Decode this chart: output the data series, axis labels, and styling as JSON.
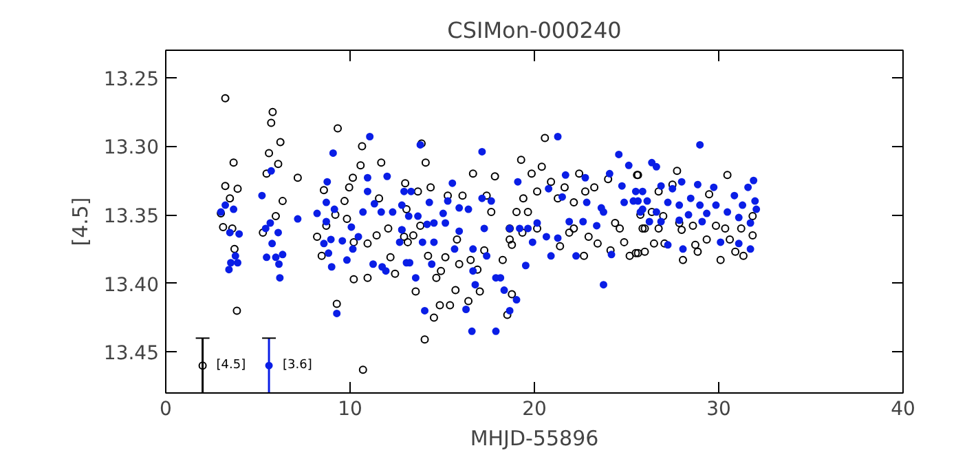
{
  "chart_data": {
    "type": "scatter",
    "title": "CSIMon-000240",
    "xlabel": "MHJD-55896",
    "ylabel": "[4.5]",
    "xlim": [
      0,
      40
    ],
    "xticks": [
      0,
      10,
      20,
      30,
      40
    ],
    "ylim": [
      13.48,
      13.23
    ],
    "yticks": [
      13.25,
      {
        "value": 13.3,
        "label": "13.30"
      },
      13.35,
      {
        "value": 13.4,
        "label": "13.40"
      },
      13.45
    ],
    "grid": false,
    "marker": "circle",
    "series": [
      {
        "color": "#000000",
        "x": [
          3.23,
          3.68,
          3.23,
          3.9,
          3.48,
          2.99,
          3.11,
          3.61,
          3.73,
          3.86,
          5.8,
          5.72,
          6.22,
          5.6,
          6.1,
          5.47,
          7.16,
          6.34,
          5.97,
          5.27,
          9.33,
          10.65,
          10.57,
          11.69,
          10.15,
          8.58,
          9.95,
          9.7,
          9.2,
          8.71,
          8.21,
          9.83,
          10.2,
          10.95,
          11.44,
          12.07,
          12.93,
          8.46,
          10.2,
          10.95,
          12.19,
          12.44,
          9.28,
          10.7,
          13.06,
          11.57,
          13.88,
          14.1,
          12.99,
          13.68,
          14.37,
          13.81,
          13.43,
          13.13,
          14.23,
          14.93,
          14.68,
          13.56,
          14.55,
          14.05,
          15.3,
          16.1,
          16.67,
          17.86,
          17.41,
          17.66,
          15.8,
          15.17,
          15.92,
          16.54,
          17.28,
          16.91,
          15.72,
          17.04,
          16.42,
          15.42,
          14.87,
          18.53,
          18.78,
          18.28,
          18.78,
          19.28,
          19.85,
          20.4,
          20.57,
          19.4,
          20.15,
          19.03,
          19.65,
          20.9,
          21.64,
          21.27,
          22.14,
          22.76,
          22.43,
          23.25,
          24.0,
          18.66,
          19.35,
          20.15,
          18.66,
          21.39,
          21.89,
          22.14,
          22.94,
          22.69,
          23.43,
          24.38,
          24.63,
          24.87,
          24.13,
          25.17,
          25.62,
          25.87,
          25.57,
          27.74,
          25.62,
          27.49,
          26.74,
          30.47,
          29.48,
          25.75,
          26.37,
          26.99,
          27.86,
          28.6,
          29.85,
          30.35,
          31.22,
          31.84,
          25.99,
          26.74,
          27.99,
          29.35,
          30.6,
          31.84,
          25.5,
          25.99,
          26.49,
          27.06,
          28.73,
          30.9,
          31.34,
          28.06,
          28.86,
          30.1
        ],
        "values": [
          13.265,
          13.312,
          13.329,
          13.331,
          13.338,
          13.349,
          13.359,
          13.36,
          13.375,
          13.42,
          13.275,
          13.283,
          13.297,
          13.305,
          13.313,
          13.32,
          13.323,
          13.34,
          13.351,
          13.363,
          13.287,
          13.3,
          13.314,
          13.312,
          13.323,
          13.332,
          13.33,
          13.34,
          13.35,
          13.358,
          13.366,
          13.353,
          13.37,
          13.371,
          13.365,
          13.36,
          13.366,
          13.38,
          13.397,
          13.396,
          13.381,
          13.393,
          13.415,
          13.463,
          13.346,
          13.338,
          13.298,
          13.312,
          13.327,
          13.333,
          13.33,
          13.358,
          13.365,
          13.37,
          13.38,
          13.391,
          13.396,
          13.406,
          13.425,
          13.441,
          13.336,
          13.336,
          13.32,
          13.322,
          13.336,
          13.348,
          13.368,
          13.381,
          13.386,
          13.383,
          13.376,
          13.39,
          13.405,
          13.406,
          13.413,
          13.416,
          13.416,
          13.423,
          13.408,
          13.383,
          13.372,
          13.31,
          13.32,
          13.315,
          13.294,
          13.338,
          13.333,
          13.348,
          13.348,
          13.326,
          13.33,
          13.338,
          13.341,
          13.333,
          13.32,
          13.33,
          13.324,
          13.36,
          13.363,
          13.36,
          13.368,
          13.373,
          13.363,
          13.36,
          13.366,
          13.38,
          13.371,
          13.356,
          13.36,
          13.37,
          13.376,
          13.38,
          13.378,
          13.36,
          13.321,
          13.318,
          13.321,
          13.328,
          13.333,
          13.321,
          13.335,
          13.35,
          13.348,
          13.351,
          13.356,
          13.358,
          13.358,
          13.36,
          13.36,
          13.351,
          13.36,
          13.36,
          13.361,
          13.368,
          13.368,
          13.365,
          13.378,
          13.377,
          13.371,
          13.371,
          13.372,
          13.377,
          13.38,
          13.383,
          13.377,
          13.383
        ]
      },
      {
        "color": "#0a1ee6",
        "x": [
          2.99,
          3.23,
          3.68,
          3.48,
          3.98,
          3.78,
          3.53,
          3.43,
          3.9,
          5.22,
          5.67,
          5.42,
          6.1,
          5.77,
          5.47,
          5.97,
          6.34,
          6.14,
          6.19,
          5.72,
          7.16,
          11.07,
          9.08,
          10.95,
          12.01,
          8.76,
          8.71,
          8.21,
          9.15,
          8.71,
          8.58,
          8.96,
          8.83,
          9.0,
          9.83,
          9.58,
          10.15,
          10.45,
          10.7,
          10.95,
          11.32,
          11.69,
          11.25,
          11.74,
          11.94,
          12.81,
          12.69,
          13.06,
          12.31,
          12.93,
          9.28,
          10.07,
          13.81,
          17.16,
          24.58,
          15.55,
          13.31,
          12.81,
          13.18,
          13.68,
          14.3,
          12.81,
          14.18,
          15.05,
          15.3,
          15.92,
          16.42,
          17.16,
          17.66,
          14.55,
          15.17,
          15.92,
          14.55,
          13.93,
          13.23,
          14.43,
          15.67,
          16.67,
          17.28,
          17.41,
          13.56,
          14.05,
          16.29,
          16.67,
          16.79,
          17.91,
          18.16,
          18.36,
          19.03,
          18.66,
          16.61,
          17.91,
          19.53,
          19.1,
          18.66,
          19.2,
          19.9,
          19.65,
          20.15,
          20.77,
          21.51,
          21.27,
          21.69,
          20.65,
          21.27,
          20.9,
          22.26,
          21.89,
          22.64,
          23.38,
          22.76,
          22.84,
          23.63,
          23.75,
          24.08,
          24.75,
          25.12,
          24.87,
          24.18,
          25.37,
          25.87,
          25.87,
          23.75,
          28.98,
          26.37,
          26.62,
          31.89,
          27.99,
          28.86,
          29.73,
          31.59,
          25.5,
          26.87,
          27.49,
          30.85,
          28.48,
          25.62,
          26.12,
          27.24,
          31.97,
          27.86,
          28.98,
          29.85,
          31.29,
          25.75,
          26.62,
          29.35,
          30.47,
          32.04,
          26.24,
          26.87,
          27.86,
          29.1,
          31.09,
          31.72,
          30.1,
          27.24,
          28.06,
          31.09,
          31.72,
          28.36
        ],
        "values": [
          13.348,
          13.343,
          13.346,
          13.363,
          13.364,
          13.38,
          13.385,
          13.39,
          13.385,
          13.336,
          13.356,
          13.36,
          13.363,
          13.371,
          13.381,
          13.381,
          13.379,
          13.386,
          13.396,
          13.318,
          13.353,
          13.293,
          13.305,
          13.323,
          13.322,
          13.326,
          13.341,
          13.349,
          13.346,
          13.355,
          13.371,
          13.368,
          13.378,
          13.388,
          13.383,
          13.369,
          13.375,
          13.366,
          13.348,
          13.333,
          13.342,
          13.348,
          13.386,
          13.388,
          13.391,
          13.361,
          13.37,
          13.385,
          13.348,
          13.333,
          13.422,
          13.359,
          13.299,
          13.304,
          13.306,
          13.327,
          13.333,
          13.343,
          13.351,
          13.351,
          13.341,
          13.361,
          13.357,
          13.349,
          13.34,
          13.345,
          13.346,
          13.338,
          13.34,
          13.356,
          13.356,
          13.362,
          13.37,
          13.37,
          13.385,
          13.386,
          13.375,
          13.375,
          13.36,
          13.38,
          13.396,
          13.42,
          13.419,
          13.391,
          13.401,
          13.396,
          13.396,
          13.405,
          13.412,
          13.42,
          13.435,
          13.435,
          13.387,
          13.326,
          13.36,
          13.36,
          13.37,
          13.36,
          13.356,
          13.331,
          13.337,
          13.293,
          13.321,
          13.366,
          13.367,
          13.38,
          13.38,
          13.355,
          13.355,
          13.358,
          13.323,
          13.341,
          13.345,
          13.401,
          13.32,
          13.329,
          13.314,
          13.341,
          13.379,
          13.34,
          13.346,
          13.333,
          13.348,
          13.299,
          13.312,
          13.315,
          13.325,
          13.326,
          13.328,
          13.33,
          13.33,
          13.333,
          13.329,
          13.331,
          13.336,
          13.338,
          13.34,
          13.34,
          13.341,
          13.34,
          13.343,
          13.343,
          13.343,
          13.343,
          13.348,
          13.348,
          13.349,
          13.348,
          13.346,
          13.355,
          13.355,
          13.354,
          13.355,
          13.352,
          13.356,
          13.37,
          13.372,
          13.375,
          13.371,
          13.375,
          13.35
        ]
      },
      {
        "name": "[4.5]",
        "color": "#000000",
        "x": [
          2.0
        ],
        "values": [
          13.46
        ],
        "errors": [
          0.02
        ]
      },
      {
        "name": "[3.6]",
        "color": "#0a1ee6",
        "x": [
          5.6
        ],
        "values": [
          13.46
        ],
        "errors": [
          0.02
        ]
      }
    ]
  }
}
